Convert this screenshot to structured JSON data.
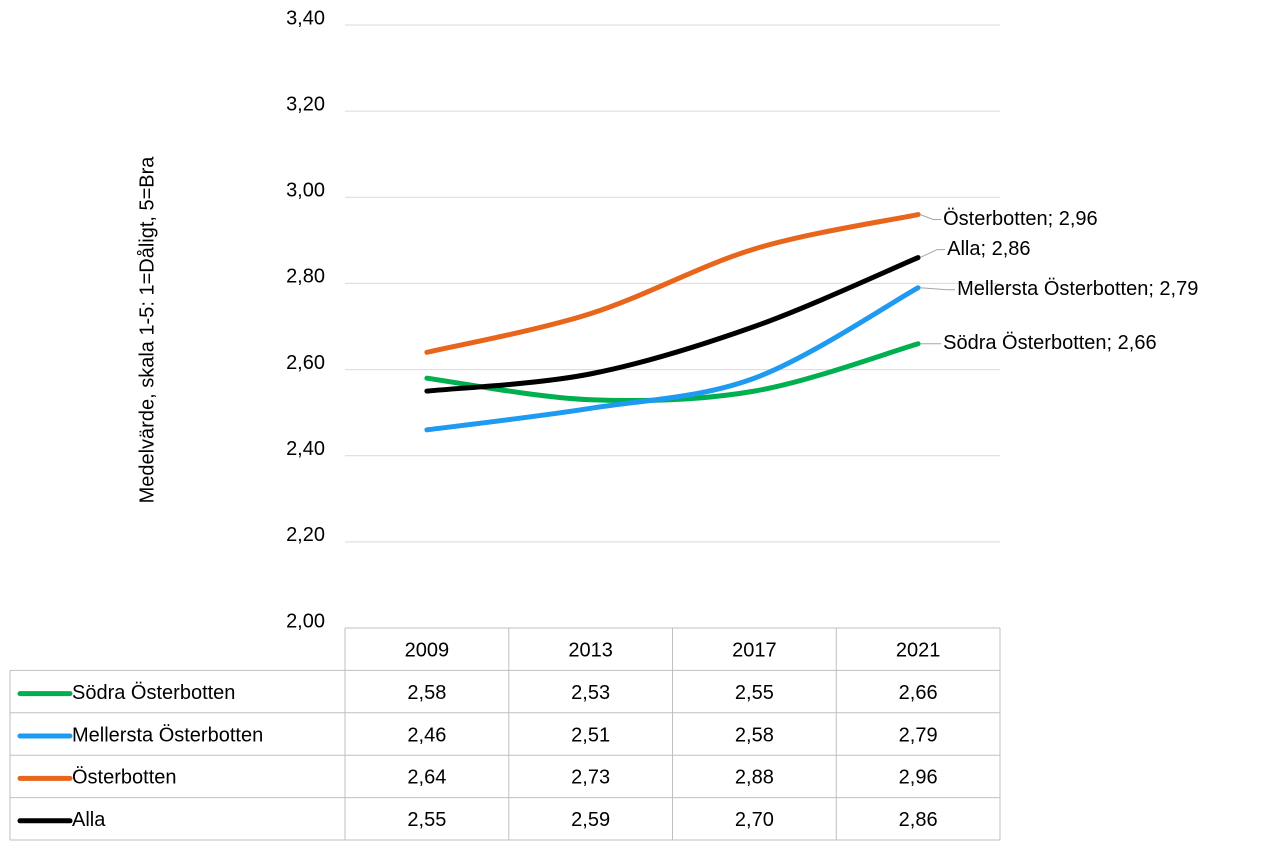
{
  "chart_data": {
    "type": "line",
    "y_label": "Medelvärde, skala 1-5: 1=Dåligt, 5=Bra",
    "categories": [
      "2009",
      "2013",
      "2017",
      "2021"
    ],
    "ylim": [
      2.0,
      3.4
    ],
    "yticks": [
      {
        "value": 2.0,
        "label": "2,00"
      },
      {
        "value": 2.2,
        "label": "2,20"
      },
      {
        "value": 2.4,
        "label": "2,40"
      },
      {
        "value": 2.6,
        "label": "2,60"
      },
      {
        "value": 2.8,
        "label": "2,80"
      },
      {
        "value": 3.0,
        "label": "3,00"
      },
      {
        "value": 3.2,
        "label": "3,20"
      },
      {
        "value": 3.4,
        "label": "3,40"
      }
    ],
    "grid": true,
    "series": [
      {
        "name": "Södra Österbotten",
        "color": "#00b050",
        "values": [
          2.58,
          2.53,
          2.55,
          2.66
        ],
        "value_labels": [
          "2,58",
          "2,53",
          "2,55",
          "2,66"
        ],
        "end_label": "Södra Österbotten; 2,66",
        "end_label_color": "#00b050"
      },
      {
        "name": "Mellersta Österbotten",
        "color": "#1e9bf0",
        "values": [
          2.46,
          2.51,
          2.58,
          2.79
        ],
        "value_labels": [
          "2,46",
          "2,51",
          "2,58",
          "2,79"
        ],
        "end_label": "Mellersta Österbotten; 2,79",
        "end_label_color": "#12a5e6"
      },
      {
        "name": "Österbotten",
        "color": "#e8661c",
        "values": [
          2.64,
          2.73,
          2.88,
          2.96
        ],
        "value_labels": [
          "2,64",
          "2,73",
          "2,88",
          "2,96"
        ],
        "end_label": "Österbotten; 2,96",
        "end_label_color": "#e8661c"
      },
      {
        "name": "Alla",
        "color": "#000000",
        "values": [
          2.55,
          2.59,
          2.7,
          2.86
        ],
        "value_labels": [
          "2,55",
          "2,59",
          "2,70",
          "2,86"
        ],
        "end_label": "Alla; 2,86",
        "end_label_color": "#000000"
      }
    ]
  }
}
